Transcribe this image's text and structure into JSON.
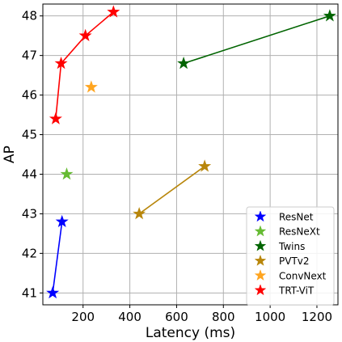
{
  "chart_data": {
    "type": "scatter",
    "title": "",
    "xlabel": "Latency (ms)",
    "ylabel": "AP",
    "xlim": [
      28,
      1290
    ],
    "ylim": [
      40.7,
      48.3
    ],
    "x_ticks": [
      200,
      400,
      600,
      800,
      1000,
      1200
    ],
    "y_ticks": [
      41,
      42,
      43,
      44,
      45,
      46,
      47,
      48
    ],
    "grid": true,
    "legend_position": "bottom-right",
    "series": [
      {
        "name": "ResNet",
        "color": "#0000ff",
        "marker": "star",
        "connected": true,
        "x": [
          70,
          110
        ],
        "y": [
          41.0,
          42.8
        ]
      },
      {
        "name": "ResNeXt",
        "color": "#66bb33",
        "marker": "star",
        "connected": false,
        "x": [
          130
        ],
        "y": [
          44.0
        ]
      },
      {
        "name": "Twins",
        "color": "#006400",
        "marker": "star",
        "connected": true,
        "x": [
          630,
          1255
        ],
        "y": [
          46.8,
          48.0
        ]
      },
      {
        "name": "PVTv2",
        "color": "#b8860b",
        "marker": "star",
        "connected": true,
        "x": [
          440,
          720
        ],
        "y": [
          43.0,
          44.2
        ]
      },
      {
        "name": "ConvNext",
        "color": "#ffa520",
        "marker": "star",
        "connected": false,
        "x": [
          235
        ],
        "y": [
          46.2
        ]
      },
      {
        "name": "TRT-ViT",
        "color": "#ff0000",
        "marker": "star",
        "connected": true,
        "x": [
          83,
          106,
          210,
          330
        ],
        "y": [
          45.4,
          46.8,
          47.5,
          48.1
        ]
      }
    ]
  }
}
